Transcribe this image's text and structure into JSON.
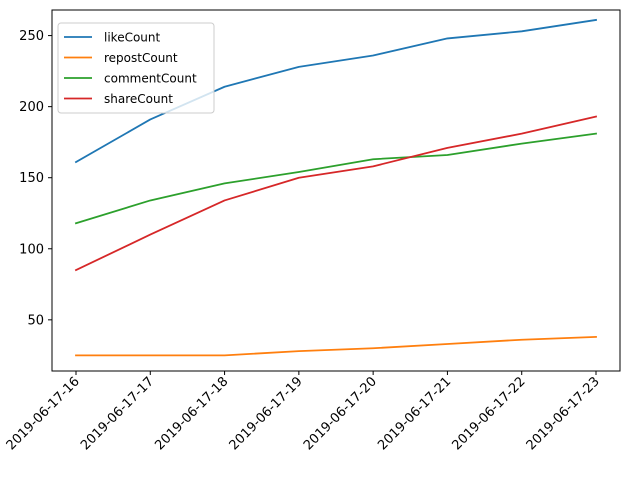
{
  "chart_data": {
    "type": "line",
    "title": "",
    "xlabel": "",
    "ylabel": "",
    "x": [
      "2019-06-17-16",
      "2019-06-17-17",
      "2019-06-17-18",
      "2019-06-17-19",
      "2019-06-17-20",
      "2019-06-17-21",
      "2019-06-17-22",
      "2019-06-17-23"
    ],
    "ylim": [
      14,
      268
    ],
    "yticks": [
      50,
      100,
      150,
      200,
      250
    ],
    "x_tick_rotation_deg": 45,
    "grid": false,
    "legend_position": "upper-left",
    "series": [
      {
        "name": "likeCount",
        "color": "#1f77b4",
        "values": [
          161,
          191,
          214,
          228,
          236,
          248,
          253,
          261
        ]
      },
      {
        "name": "repostCount",
        "color": "#ff7f0e",
        "values": [
          25,
          25,
          25,
          28,
          30,
          33,
          36,
          38
        ]
      },
      {
        "name": "commentCount",
        "color": "#2ca02c",
        "values": [
          118,
          134,
          146,
          154,
          163,
          166,
          174,
          181
        ]
      },
      {
        "name": "shareCount",
        "color": "#d62728",
        "values": [
          85,
          110,
          134,
          150,
          158,
          171,
          181,
          193
        ]
      }
    ]
  }
}
